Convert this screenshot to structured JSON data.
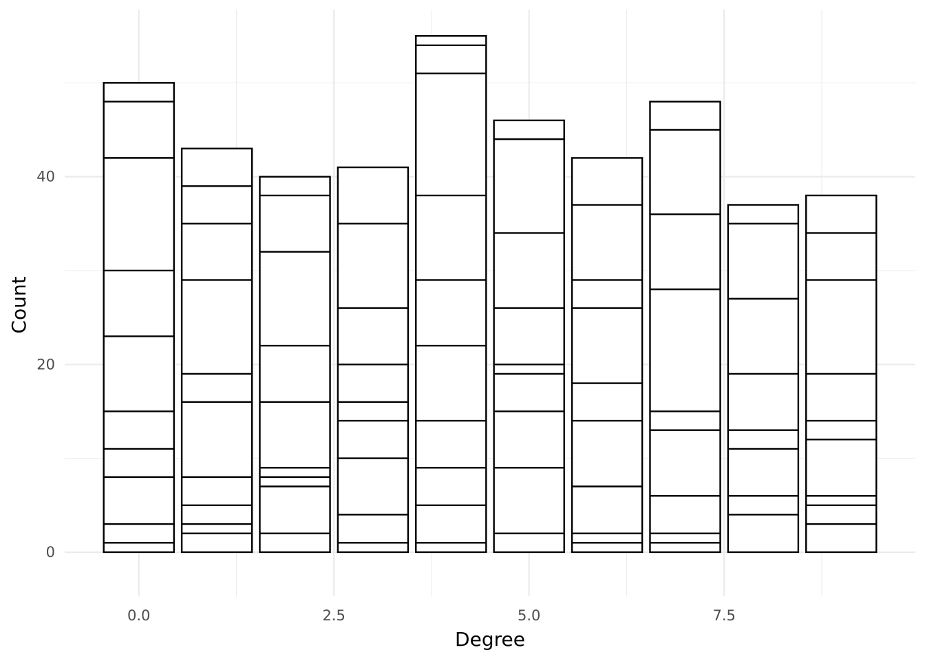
{
  "chart_data": {
    "type": "bar",
    "stacked": true,
    "title": "",
    "xlabel": "Degree",
    "ylabel": "Count",
    "xlim": [
      -0.95,
      9.95
    ],
    "ylim": [
      -4.7,
      57.8
    ],
    "x_ticks": [
      {
        "value": 0,
        "label": "0.0"
      },
      {
        "value": 2.5,
        "label": "2.5"
      },
      {
        "value": 5,
        "label": "5.0"
      },
      {
        "value": 7.5,
        "label": "7.5"
      }
    ],
    "y_ticks": [
      {
        "value": 0,
        "label": "0"
      },
      {
        "value": 20,
        "label": "20"
      },
      {
        "value": 40,
        "label": "40"
      }
    ],
    "grid": true,
    "bar_width": 0.9,
    "fill_color": "#ffffff",
    "stroke_color": "#000000",
    "grid_color": "#ebebeb",
    "bars": [
      {
        "x": 0,
        "total": 50,
        "boundaries": [
          1,
          3,
          8,
          11,
          15,
          23,
          30,
          42,
          48
        ]
      },
      {
        "x": 1,
        "total": 43,
        "boundaries": [
          2,
          3,
          5,
          8,
          16,
          19,
          29,
          35,
          39
        ]
      },
      {
        "x": 2,
        "total": 40,
        "boundaries": [
          2,
          7,
          8,
          9,
          16,
          22,
          32,
          38
        ]
      },
      {
        "x": 3,
        "total": 41,
        "boundaries": [
          1,
          4,
          10,
          14,
          16,
          20,
          26,
          35
        ]
      },
      {
        "x": 4,
        "total": 55,
        "boundaries": [
          1,
          5,
          9,
          14,
          22,
          29,
          38,
          51,
          54
        ]
      },
      {
        "x": 5,
        "total": 46,
        "boundaries": [
          2,
          9,
          15,
          19,
          20,
          26,
          34,
          44
        ]
      },
      {
        "x": 6,
        "total": 42,
        "boundaries": [
          1,
          2,
          7,
          14,
          18,
          26,
          29,
          37
        ]
      },
      {
        "x": 7,
        "total": 48,
        "boundaries": [
          1,
          2,
          6,
          13,
          15,
          28,
          36,
          45
        ]
      },
      {
        "x": 8,
        "total": 37,
        "boundaries": [
          4,
          6,
          11,
          13,
          19,
          27,
          35
        ]
      },
      {
        "x": 9,
        "total": 38,
        "boundaries": [
          3,
          5,
          6,
          12,
          14,
          19,
          29,
          34
        ]
      }
    ]
  }
}
